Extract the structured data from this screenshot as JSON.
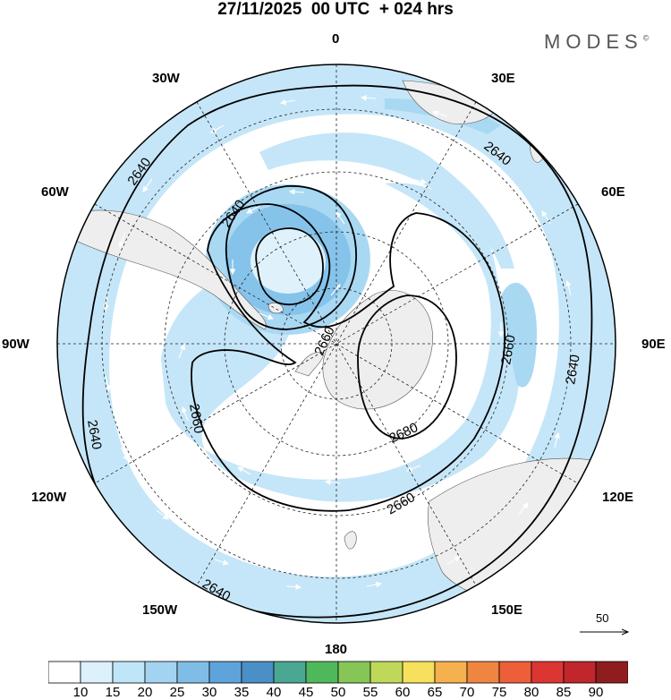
{
  "title": "27/11/2025  00 UTC  + 024 hrs",
  "brand": "MODES",
  "brand_mark": "©",
  "lon_labels": {
    "n0": "0",
    "w30": "30W",
    "e30": "30E",
    "w60": "60W",
    "e60": "60E",
    "w90": "90W",
    "e90": "90E",
    "w120": "120W",
    "e120": "120E",
    "w150": "150W",
    "e150": "150E",
    "s180": "180"
  },
  "contours": {
    "c2640_outer_a": "2640",
    "c2640_outer_b": "2640",
    "c2640_outer_c": "2640",
    "c2640_outer_d": "2640",
    "c2640_outer_e": "2640",
    "c2640_low": "2640",
    "c2660_center": "2660",
    "c2660_left": "2660",
    "c2660_right": "2660",
    "c2660_bottom": "2660",
    "c2680": "2680"
  },
  "reference_vector": {
    "label": "50"
  },
  "colorbar": {
    "ticks": [
      "10",
      "15",
      "20",
      "25",
      "30",
      "35",
      "40",
      "45",
      "50",
      "55",
      "60",
      "65",
      "70",
      "75",
      "80",
      "85",
      "90"
    ],
    "colors": [
      "#ffffff",
      "#dcf1fb",
      "#bfe5f8",
      "#a2d4f1",
      "#80bde6",
      "#5fa3db",
      "#4b8fc7",
      "#4aa792",
      "#4fb85b",
      "#86c657",
      "#bfd85a",
      "#f6e05c",
      "#f5b14e",
      "#f08541",
      "#ec5f38",
      "#dc3632",
      "#c0262c",
      "#8f1d1f"
    ]
  }
}
